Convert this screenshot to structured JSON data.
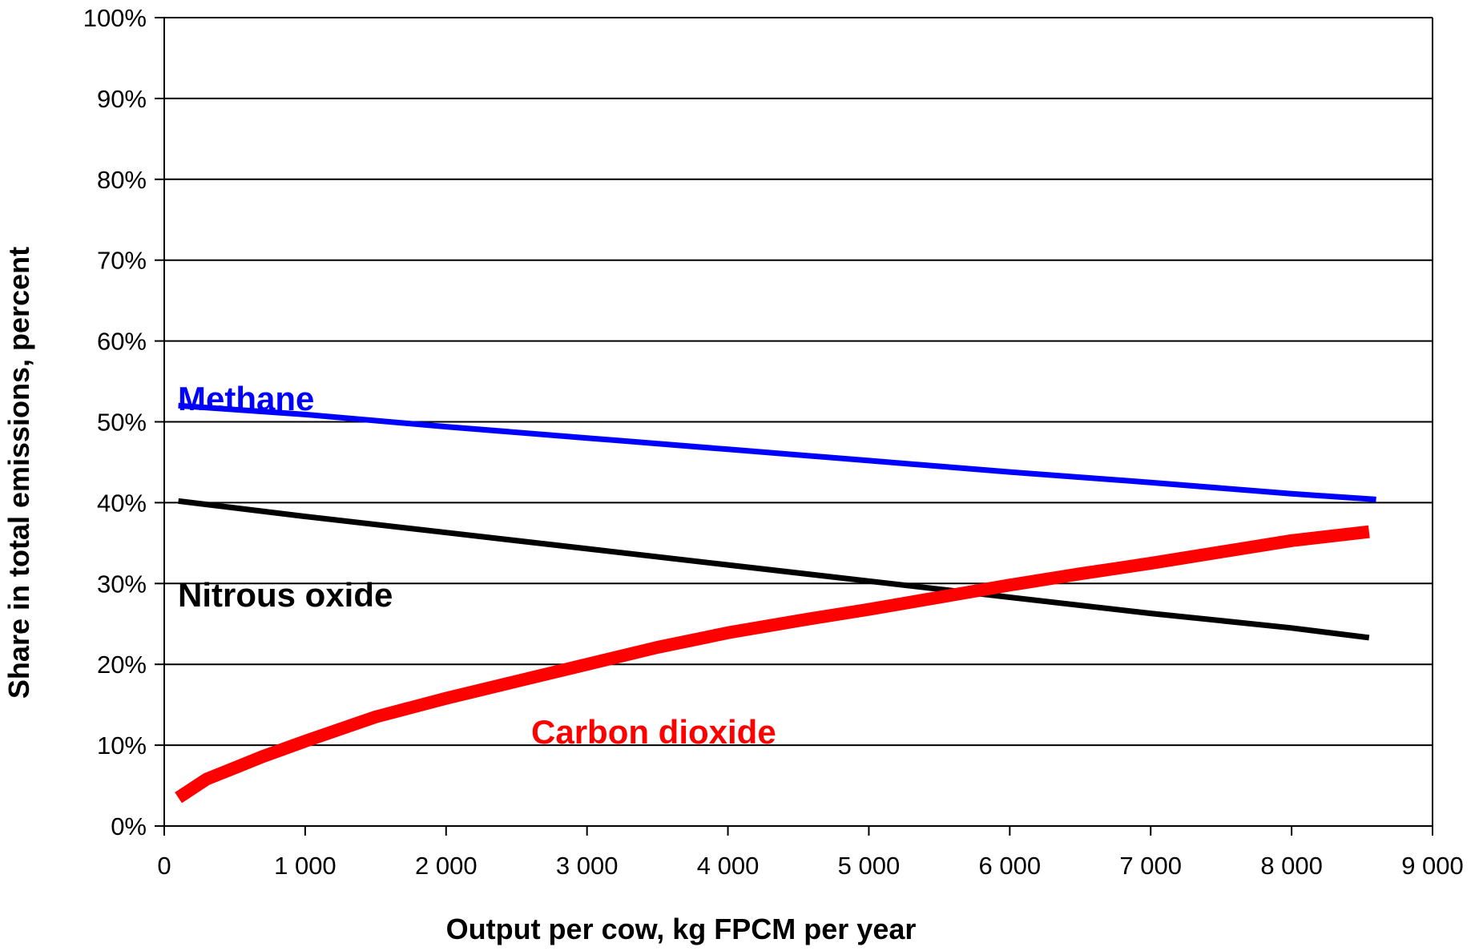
{
  "chart_data": {
    "type": "line",
    "title": "",
    "xlabel": "Output per cow, kg FPCM per year",
    "ylabel": "Share in total emissions, percent",
    "xlim": [
      0,
      9000
    ],
    "ylim": [
      0,
      100
    ],
    "x_ticks": [
      0,
      1000,
      2000,
      3000,
      4000,
      5000,
      6000,
      7000,
      8000,
      9000
    ],
    "x_tick_labels": [
      "0",
      "1 000",
      "2 000",
      "3 000",
      "4 000",
      "5 000",
      "6 000",
      "7 000",
      "8 000",
      "9 000"
    ],
    "y_ticks": [
      0,
      10,
      20,
      30,
      40,
      50,
      60,
      70,
      80,
      90,
      100
    ],
    "y_tick_labels": [
      "0%",
      "10%",
      "20%",
      "30%",
      "40%",
      "50%",
      "60%",
      "70%",
      "80%",
      "90%",
      "100%"
    ],
    "grid": "horizontal",
    "legend": "inline labels",
    "series": [
      {
        "name": "Methane",
        "color": "#0000ff",
        "x": [
          100,
          1000,
          2000,
          3000,
          4000,
          5000,
          6000,
          7000,
          8000,
          8600
        ],
        "y": [
          52,
          50.9,
          49.4,
          48.0,
          46.6,
          45.2,
          43.8,
          42.5,
          41.1,
          40.4
        ]
      },
      {
        "name": "Nitrous oxide",
        "color": "#000000",
        "x": [
          100,
          1000,
          2000,
          3000,
          4000,
          5000,
          6000,
          7000,
          8000,
          8550
        ],
        "y": [
          40.2,
          38.3,
          36.3,
          34.3,
          32.3,
          30.3,
          28.3,
          26.3,
          24.5,
          23.3
        ]
      },
      {
        "name": "Carbon dioxide",
        "color": "#ff0000",
        "x": [
          100,
          300,
          500,
          700,
          1000,
          1500,
          2000,
          2500,
          3000,
          3500,
          4000,
          4500,
          5000,
          5500,
          6000,
          6500,
          7000,
          7500,
          8000,
          8550
        ],
        "y": [
          3.5,
          5.8,
          7.2,
          8.6,
          10.5,
          13.5,
          15.8,
          17.9,
          20.0,
          22.1,
          23.9,
          25.4,
          26.8,
          28.3,
          29.8,
          31.2,
          32.5,
          33.9,
          35.3,
          36.4
        ]
      }
    ]
  }
}
